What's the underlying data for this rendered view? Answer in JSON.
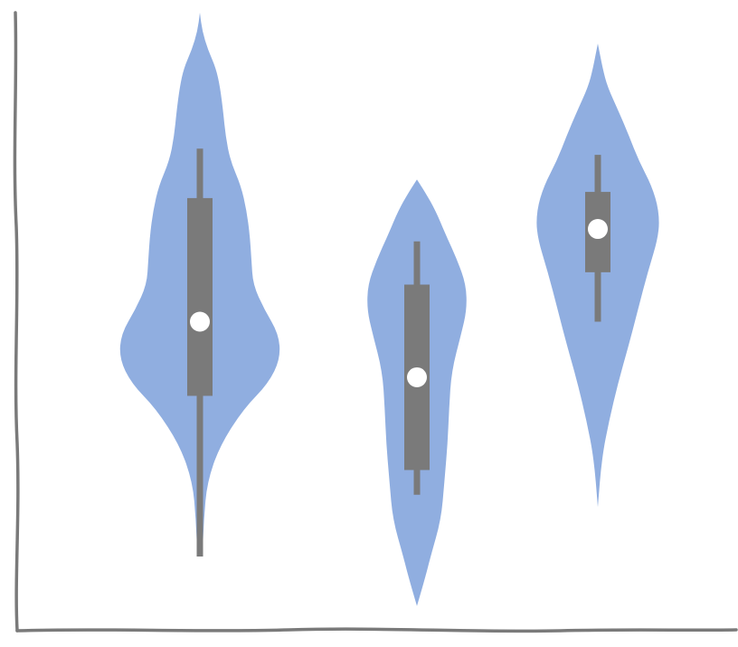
{
  "chart_data": {
    "type": "violin",
    "title": "",
    "xlabel": "",
    "ylabel": "",
    "style": "hand-drawn (xkcd-like)",
    "x_ticks": [],
    "y_ticks": [],
    "ylim": [
      0,
      100
    ],
    "grid": false,
    "legend": "none",
    "colors": {
      "violin_fill": "#90aee0",
      "box": "#7a7a7a",
      "median": "#ffffff",
      "axis": "#7a7a7a"
    },
    "series": [
      {
        "position": 1,
        "stats": {
          "min": 12,
          "q1": 38,
          "median": 50,
          "q3": 70,
          "max": 78
        },
        "extent": [
          12,
          100
        ],
        "profile": [
          [
            12,
            0.03
          ],
          [
            18,
            0.05
          ],
          [
            24,
            0.09
          ],
          [
            30,
            0.25
          ],
          [
            36,
            0.55
          ],
          [
            40,
            0.85
          ],
          [
            44,
            1.0
          ],
          [
            48,
            0.98
          ],
          [
            52,
            0.8
          ],
          [
            56,
            0.66
          ],
          [
            60,
            0.64
          ],
          [
            64,
            0.62
          ],
          [
            68,
            0.58
          ],
          [
            72,
            0.51
          ],
          [
            76,
            0.38
          ],
          [
            80,
            0.32
          ],
          [
            84,
            0.29
          ],
          [
            88,
            0.25
          ],
          [
            91,
            0.2
          ],
          [
            94,
            0.1
          ],
          [
            97,
            0.03
          ],
          [
            100,
            0.0
          ]
        ]
      },
      {
        "position": 2,
        "stats": {
          "min": 22,
          "q1": 26,
          "median": 41,
          "q3": 56,
          "max": 63
        },
        "extent": [
          4,
          73
        ],
        "profile": [
          [
            4,
            0.0
          ],
          [
            8,
            0.09
          ],
          [
            12,
            0.17
          ],
          [
            18,
            0.3
          ],
          [
            24,
            0.34
          ],
          [
            30,
            0.38
          ],
          [
            36,
            0.4
          ],
          [
            42,
            0.43
          ],
          [
            48,
            0.55
          ],
          [
            52,
            0.62
          ],
          [
            56,
            0.61
          ],
          [
            60,
            0.5
          ],
          [
            64,
            0.36
          ],
          [
            68,
            0.23
          ],
          [
            71,
            0.1
          ],
          [
            73,
            0.0
          ]
        ]
      },
      {
        "position": 3,
        "stats": {
          "min": 50,
          "q1": 58,
          "median": 65,
          "q3": 71,
          "max": 77
        },
        "extent": [
          20,
          95
        ],
        "profile": [
          [
            20,
            0.0
          ],
          [
            28,
            0.05
          ],
          [
            34,
            0.14
          ],
          [
            40,
            0.25
          ],
          [
            46,
            0.38
          ],
          [
            52,
            0.5
          ],
          [
            58,
            0.62
          ],
          [
            64,
            0.76
          ],
          [
            68,
            0.76
          ],
          [
            72,
            0.67
          ],
          [
            76,
            0.51
          ],
          [
            80,
            0.39
          ],
          [
            84,
            0.26
          ],
          [
            88,
            0.12
          ],
          [
            91,
            0.06
          ],
          [
            95,
            0.0
          ]
        ]
      }
    ]
  }
}
